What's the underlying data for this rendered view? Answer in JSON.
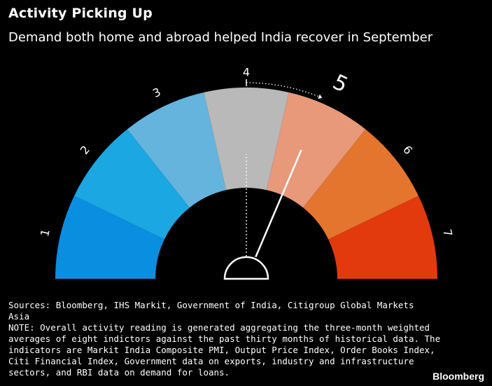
{
  "header": {
    "title": "Activity Picking Up",
    "subtitle": "Demand both home and abroad helped India recover in September"
  },
  "chart_data": {
    "type": "gauge",
    "scale": [
      1,
      7
    ],
    "segments": [
      {
        "label": "1",
        "color": "#0a8ee0"
      },
      {
        "label": "2",
        "color": "#1aa7e2"
      },
      {
        "label": "3",
        "color": "#64b4de"
      },
      {
        "label": "4",
        "color": "#b9b9b9"
      },
      {
        "label": "5",
        "color": "#e7997a"
      },
      {
        "label": "6",
        "color": "#e4752f"
      },
      {
        "label": "7",
        "color": "#e23a0d"
      }
    ],
    "previous_reading": 4,
    "current_reading": 5,
    "needle_color": "#ffffff"
  },
  "notes": {
    "sources": [
      "Sources: Bloomberg, IHS Markit, Government of India, Citigroup Global Markets",
      "Asia"
    ],
    "note": [
      "NOTE: Overall activity reading is generated aggregating the three-month weighted",
      "averages of eight indictors against the past thirty months of historical data. The",
      "indicators are Markit India Composite PMI, Output Price Index, Order Books Index,",
      "Citi Financial Index, Government data on exports, industry and infrastructure",
      "sectors, and RBI data on demand for loans."
    ]
  },
  "brand": "Bloomberg"
}
